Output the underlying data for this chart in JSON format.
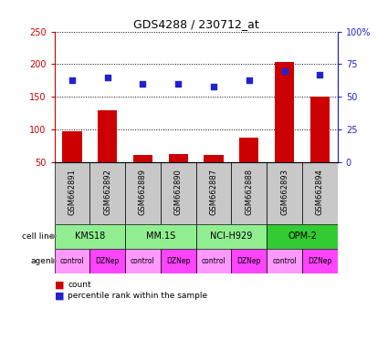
{
  "title": "GDS4288 / 230712_at",
  "samples": [
    "GSM662891",
    "GSM662892",
    "GSM662889",
    "GSM662890",
    "GSM662887",
    "GSM662888",
    "GSM662893",
    "GSM662894"
  ],
  "counts": [
    97,
    130,
    62,
    63,
    61,
    88,
    204,
    151
  ],
  "percentile_ranks": [
    63,
    65,
    60,
    60,
    58,
    63,
    70,
    67
  ],
  "cell_lines": [
    {
      "label": "KMS18",
      "span": [
        0,
        2
      ],
      "color": "#90EE90"
    },
    {
      "label": "MM.1S",
      "span": [
        2,
        4
      ],
      "color": "#90EE90"
    },
    {
      "label": "NCI-H929",
      "span": [
        4,
        6
      ],
      "color": "#90EE90"
    },
    {
      "label": "OPM-2",
      "span": [
        6,
        8
      ],
      "color": "#33CC33"
    }
  ],
  "agents": [
    "control",
    "DZNep",
    "control",
    "DZNep",
    "control",
    "DZNep",
    "control",
    "DZNep"
  ],
  "agent_colors_odd": "#FF99FF",
  "agent_colors_even": "#FF44FF",
  "ylim_left": [
    50,
    250
  ],
  "ylim_right": [
    0,
    100
  ],
  "yticks_left": [
    50,
    100,
    150,
    200,
    250
  ],
  "yticks_right": [
    0,
    25,
    50,
    75,
    100
  ],
  "ytick_labels_right": [
    "0",
    "25",
    "50",
    "75",
    "100%"
  ],
  "bar_color": "#CC0000",
  "dot_color": "#2222CC",
  "sample_bg_color": "#C8C8C8",
  "left_tick_color": "#CC0000",
  "right_tick_color": "#2222CC",
  "bar_bottom": 50,
  "figsize": [
    4.25,
    3.84
  ],
  "dpi": 100
}
